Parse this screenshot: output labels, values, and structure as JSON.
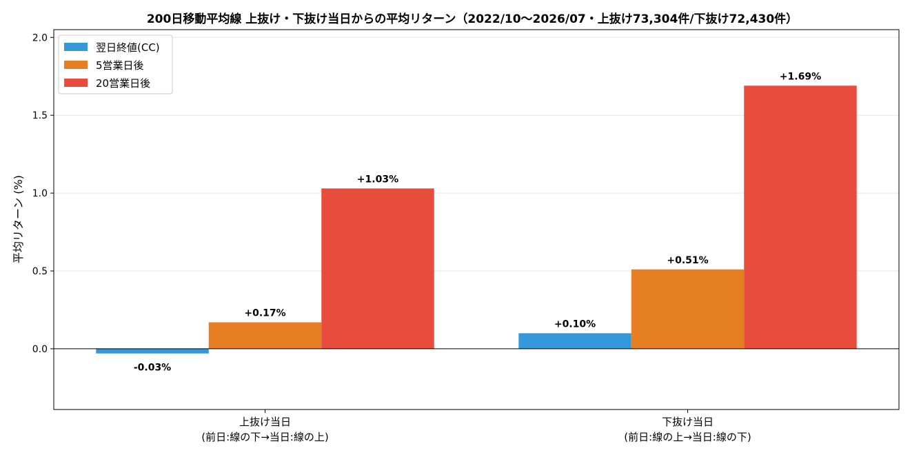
{
  "chart_data": {
    "type": "bar",
    "title": "200日移動平均線 上抜け・下抜け当日からの平均リターン（2022/10〜2026/07・上抜け73,304件/下抜け72,430件）",
    "xlabel": "",
    "ylabel": "平均リターン (%)",
    "ylim": [
      -0.39,
      2.05
    ],
    "yticks": [
      0.0,
      0.5,
      1.0,
      1.5,
      2.0
    ],
    "ytick_labels": [
      "0.0",
      "0.5",
      "1.0",
      "1.5",
      "2.0"
    ],
    "grid": "horizontal",
    "legend_position": "top-left",
    "categories": [
      [
        "上抜け当日",
        "(前日:線の下→当日:線の上)"
      ],
      [
        "下抜け当日",
        "(前日:線の上→当日:線の下)"
      ]
    ],
    "series": [
      {
        "name": "翌日終値(CC)",
        "color": "#3498db",
        "values": [
          -0.03,
          0.1
        ],
        "labels": [
          "-0.03%",
          "+0.10%"
        ]
      },
      {
        "name": "5営業日後",
        "color": "#e67e22",
        "values": [
          0.17,
          0.51
        ],
        "labels": [
          "+0.17%",
          "+0.51%"
        ]
      },
      {
        "name": "20営業日後",
        "color": "#e74c3c",
        "values": [
          1.03,
          1.69
        ],
        "labels": [
          "+1.03%",
          "+1.69%"
        ]
      }
    ]
  }
}
